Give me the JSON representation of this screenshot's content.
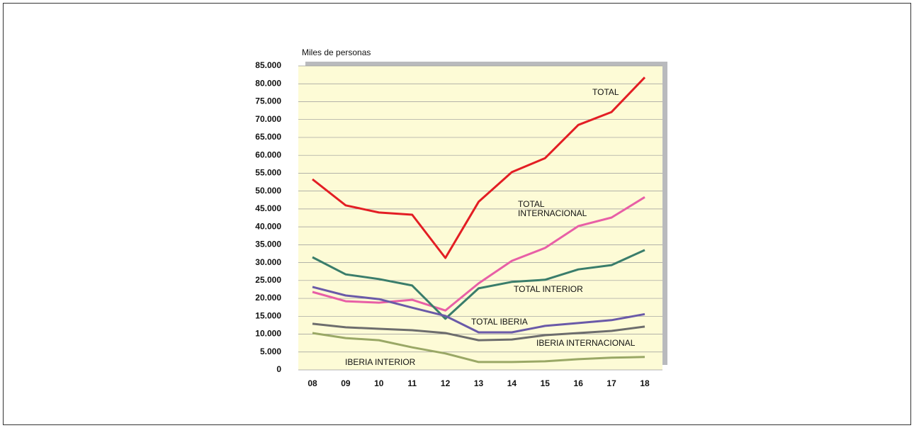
{
  "chart_data": {
    "type": "line",
    "ylabel": "Miles de personas",
    "categories": [
      "08",
      "09",
      "10",
      "11",
      "12",
      "13",
      "14",
      "15",
      "16",
      "17",
      "18"
    ],
    "series": [
      {
        "name": "TOTAL",
        "color": "#e31e24",
        "values": [
          53300,
          46000,
          44000,
          43400,
          31300,
          47000,
          55300,
          59200,
          68500,
          72100,
          81800
        ]
      },
      {
        "name": "TOTAL INTERNACIONAL",
        "color": "#e85fa6",
        "values": [
          21800,
          19200,
          18800,
          19600,
          16600,
          24200,
          30500,
          34100,
          40200,
          42600,
          48300
        ]
      },
      {
        "name": "TOTAL INTERIOR",
        "color": "#3a7d6b",
        "values": [
          31500,
          26700,
          25400,
          23600,
          14300,
          22800,
          24600,
          25200,
          28100,
          29300,
          33500
        ]
      },
      {
        "name": "TOTAL IBERIA",
        "color": "#6a5aa8",
        "values": [
          23200,
          20800,
          19800,
          17400,
          15100,
          10500,
          10500,
          12300,
          13100,
          13900,
          15600
        ]
      },
      {
        "name": "IBERIA INTERNACIONAL",
        "color": "#6d6d6d",
        "values": [
          12900,
          11900,
          11500,
          11100,
          10300,
          8300,
          8500,
          9700,
          10300,
          10900,
          12100
        ]
      },
      {
        "name": "IBERIA INTERIOR",
        "color": "#9aa866",
        "values": [
          10300,
          8900,
          8300,
          6300,
          4600,
          2200,
          2200,
          2400,
          3000,
          3400,
          3600
        ]
      }
    ],
    "ylim": [
      0,
      85000
    ],
    "yticks": [
      0,
      {
        "value": 5000,
        "label": "5.000"
      },
      {
        "value": 10000,
        "label": "10.000"
      },
      {
        "value": 15000,
        "label": "15.000"
      },
      {
        "value": 20000,
        "label": "20.000"
      },
      {
        "value": 25000,
        "label": "25.000"
      },
      {
        "value": 30000,
        "label": "30.000"
      },
      {
        "value": 35000,
        "label": "35.000"
      },
      {
        "value": 40000,
        "label": "40.000"
      },
      {
        "value": 45000,
        "label": "45.000"
      },
      {
        "value": 50000,
        "label": "50.000"
      },
      {
        "value": 55000,
        "label": "55.000"
      },
      {
        "value": 60000,
        "label": "60.000"
      },
      {
        "value": 65000,
        "label": "65.000"
      },
      {
        "value": 70000,
        "label": "70.000"
      },
      {
        "value": 75000,
        "label": "75.000"
      },
      {
        "value": 80000,
        "label": "80.000"
      },
      {
        "value": 85000,
        "label": "85.000"
      }
    ],
    "grid": true
  }
}
